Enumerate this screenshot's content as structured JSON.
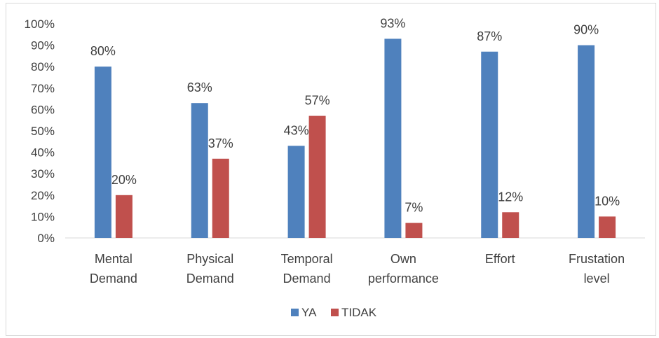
{
  "chart_data": {
    "type": "bar",
    "categories": [
      [
        "Mental",
        "Demand"
      ],
      [
        "Physical",
        "Demand"
      ],
      [
        "Temporal",
        "Demand"
      ],
      [
        "Own",
        "performance"
      ],
      [
        "Effort"
      ],
      [
        "Frustation",
        "level"
      ]
    ],
    "series": [
      {
        "name": "YA",
        "color": "#4f81bd",
        "values": [
          80,
          63,
          43,
          93,
          87,
          90
        ],
        "labels": [
          "80%",
          "63%",
          "43%",
          "93%",
          "87%",
          "90%"
        ]
      },
      {
        "name": "TIDAK",
        "color": "#c0504d",
        "values": [
          20,
          37,
          57,
          7,
          12,
          10
        ],
        "labels": [
          "20%",
          "37%",
          "57%",
          "7%",
          "12%",
          "10%"
        ]
      }
    ],
    "yticks": [
      "0%",
      "10%",
      "20%",
      "30%",
      "40%",
      "50%",
      "60%",
      "70%",
      "80%",
      "90%",
      "100%"
    ],
    "ylim": [
      0,
      100
    ],
    "grid": false,
    "legend": "bottom"
  }
}
